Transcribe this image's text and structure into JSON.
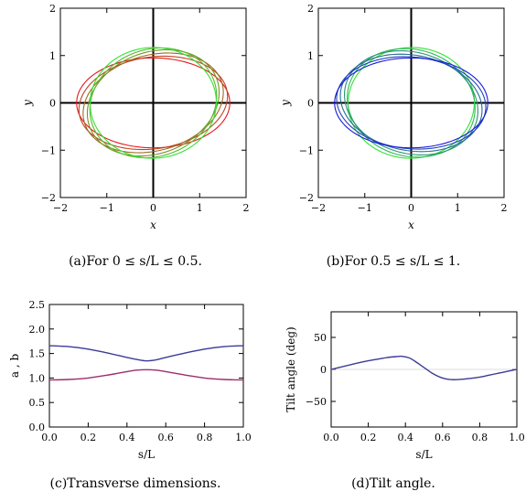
{
  "chart_data": [
    {
      "type": "line",
      "kind": "ellipse-family",
      "caption": "(a)For 0 ≤ s/L ≤ 0.5.",
      "xlabel": "x",
      "ylabel": "y",
      "xlim": [
        -2,
        2
      ],
      "ylim": [
        -2,
        2
      ],
      "xticks": [
        "−2",
        "−1",
        "0",
        "1",
        "2"
      ],
      "yticks": [
        "−2",
        "−1",
        "0",
        "1",
        "2"
      ],
      "s_over_L": [
        0,
        0.1,
        0.2,
        0.3,
        0.4,
        0.5
      ],
      "semi_a": [
        1.65,
        1.61,
        1.54,
        1.46,
        1.39,
        1.36
      ],
      "semi_b": [
        0.95,
        0.97,
        1.01,
        1.07,
        1.13,
        1.17
      ],
      "tilt_deg": [
        0,
        8,
        15,
        20,
        19,
        2
      ],
      "color_start": "#e41a1c",
      "color_end": "#33e233"
    },
    {
      "type": "line",
      "kind": "ellipse-family",
      "caption": "(b)For 0.5 ≤ s/L ≤ 1.",
      "xlabel": "x",
      "ylabel": "y",
      "xlim": [
        -2,
        2
      ],
      "ylim": [
        -2,
        2
      ],
      "xticks": [
        "−2",
        "−1",
        "0",
        "1",
        "2"
      ],
      "yticks": [
        "−2",
        "−1",
        "0",
        "1",
        "2"
      ],
      "s_over_L": [
        0.5,
        0.6,
        0.7,
        0.8,
        0.9,
        1.0
      ],
      "semi_a": [
        1.36,
        1.39,
        1.46,
        1.54,
        1.61,
        1.65
      ],
      "semi_b": [
        1.17,
        1.13,
        1.07,
        1.01,
        0.97,
        0.95
      ],
      "tilt_deg": [
        2,
        -14,
        -15,
        -10,
        -5,
        0
      ],
      "color_start": "#33e233",
      "color_end": "#1a1adc"
    },
    {
      "type": "line",
      "caption": "(c)Transverse dimensions.",
      "xlabel": "s/L",
      "ylabel": "a , b",
      "xlim": [
        0,
        1
      ],
      "ylim": [
        0,
        2.5
      ],
      "xticks": [
        "0.0",
        "0.2",
        "0.4",
        "0.6",
        "0.8",
        "1.0"
      ],
      "yticks": [
        "0.0",
        "0.5",
        "1.0",
        "1.5",
        "2.0",
        "2.5"
      ],
      "x": [
        0,
        0.1,
        0.2,
        0.3,
        0.4,
        0.45,
        0.5,
        0.55,
        0.6,
        0.7,
        0.8,
        0.9,
        1.0
      ],
      "series": [
        {
          "color": "#3b3b9a",
          "values": [
            1.66,
            1.64,
            1.59,
            1.51,
            1.42,
            1.38,
            1.35,
            1.37,
            1.42,
            1.51,
            1.59,
            1.64,
            1.66
          ]
        },
        {
          "color": "#9a2f6e",
          "values": [
            0.96,
            0.97,
            1.0,
            1.06,
            1.13,
            1.16,
            1.17,
            1.16,
            1.13,
            1.06,
            1.0,
            0.97,
            0.96
          ]
        }
      ]
    },
    {
      "type": "line",
      "caption": "(d)Tilt angle.",
      "xlabel": "s/L",
      "ylabel": "Tilt angle (deg)",
      "xlim": [
        0,
        1
      ],
      "ylim": [
        -90,
        90
      ],
      "xticks": [
        "0.0",
        "0.2",
        "0.4",
        "0.6",
        "0.8",
        "1.0"
      ],
      "yticks": [
        "−50",
        "0",
        "50"
      ],
      "ytick_values": [
        -50,
        0,
        50
      ],
      "x": [
        0,
        0.05,
        0.1,
        0.15,
        0.2,
        0.25,
        0.3,
        0.35,
        0.38,
        0.42,
        0.45,
        0.5,
        0.55,
        0.6,
        0.65,
        0.7,
        0.75,
        0.8,
        0.85,
        0.9,
        0.95,
        1.0
      ],
      "series": [
        {
          "color": "#3b3b9a",
          "values": [
            0,
            3.5,
            7,
            10.5,
            13.5,
            16,
            18.5,
            20,
            20.5,
            18,
            13,
            3,
            -7,
            -13.5,
            -16,
            -15.5,
            -14,
            -12,
            -9,
            -6,
            -3,
            0
          ]
        }
      ]
    }
  ]
}
